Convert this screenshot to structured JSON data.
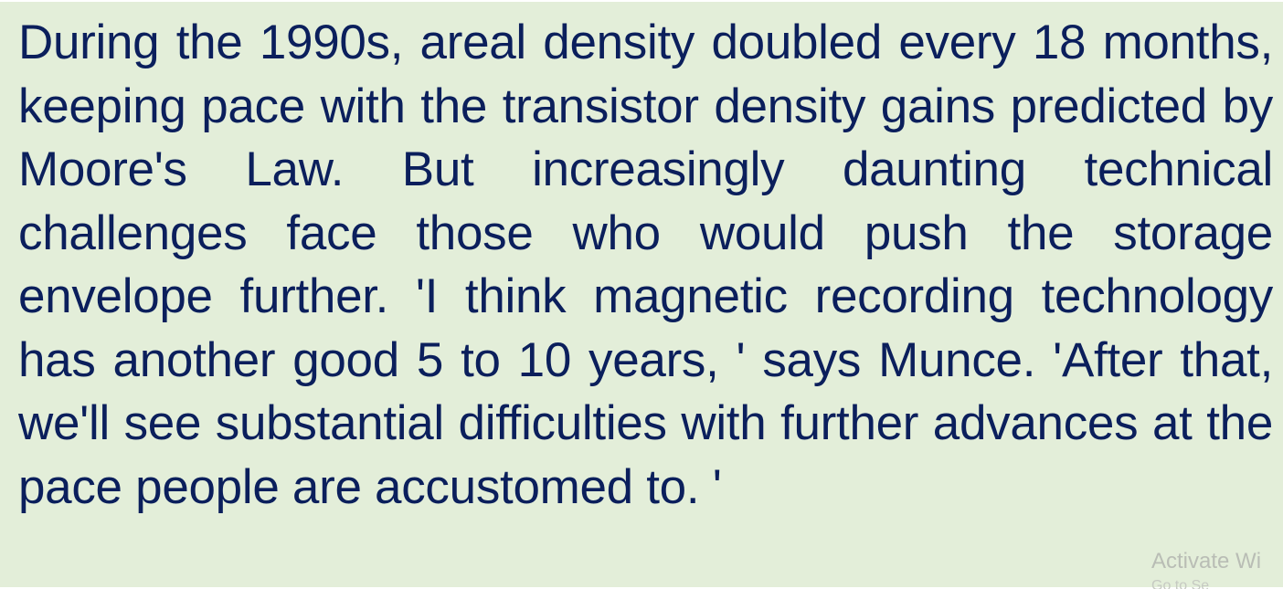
{
  "document": {
    "paragraph": "During the 1990s, areal density doubled every 18 months, keeping pace with the transistor density gains predicted by Moore's Law. But increasingly daunting technical challenges face those who would push the storage envelope further. 'I think magnetic recording technology has another good 5 to 10 years, ' says Munce. 'After that, we'll see substantial difficulties with further advances at the pace people are accustomed to. '"
  },
  "watermark": {
    "title": "Activate Wi",
    "subtitle": "Go to Se"
  },
  "colors": {
    "background": "#e3eed9",
    "text": "#0b1f5c",
    "watermark": "#b9bdb5"
  }
}
